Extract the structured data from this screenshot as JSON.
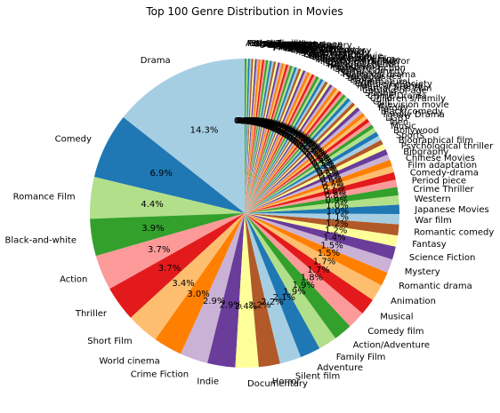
{
  "chart_data": {
    "type": "pie",
    "title": "Top 100 Genre Distribution in Movies",
    "start_angle_deg": 90,
    "direction": "counterclockwise",
    "autopct": "%1.1f%%",
    "palette": [
      "#a6cee3",
      "#1f78b4",
      "#b2df8a",
      "#33a02c",
      "#fb9a99",
      "#e31a1c",
      "#fdbf6f",
      "#ff7f00",
      "#cab2d6",
      "#6a3d9a",
      "#ffff99",
      "#b15928"
    ],
    "slices": [
      {
        "label": "Drama",
        "value": 14.8
      },
      {
        "label": "Comedy",
        "value": 7.1
      },
      {
        "label": "Romance Film",
        "value": 4.5
      },
      {
        "label": "Black-and-white",
        "value": 4.0
      },
      {
        "label": "Action",
        "value": 3.8
      },
      {
        "label": "Thriller",
        "value": 3.8
      },
      {
        "label": "Short Film",
        "value": 3.5
      },
      {
        "label": "World cinema",
        "value": 3.1
      },
      {
        "label": "Crime Fiction",
        "value": 3.0
      },
      {
        "label": "Indie",
        "value": 3.0
      },
      {
        "label": "Documentary",
        "value": 2.5
      },
      {
        "label": "Horror",
        "value": 2.3
      },
      {
        "label": "Silent film",
        "value": 2.3
      },
      {
        "label": "Adventure",
        "value": 2.2
      },
      {
        "label": "Family Film",
        "value": 2.0
      },
      {
        "label": "Action/Adventure",
        "value": 2.0
      },
      {
        "label": "Comedy film",
        "value": 1.9
      },
      {
        "label": "Musical",
        "value": 1.8
      },
      {
        "label": "Animation",
        "value": 1.8
      },
      {
        "label": "Romantic drama",
        "value": 1.5
      },
      {
        "label": "Mystery",
        "value": 1.5
      },
      {
        "label": "Science Fiction",
        "value": 1.4
      },
      {
        "label": "Fantasy",
        "value": 1.2
      },
      {
        "label": "Romantic comedy",
        "value": 1.2
      },
      {
        "label": "War film",
        "value": 1.1
      },
      {
        "label": "Japanese Movies",
        "value": 1.0
      },
      {
        "label": "Western",
        "value": 1.0
      },
      {
        "label": "Crime Thriller",
        "value": 0.9
      },
      {
        "label": "Period piece",
        "value": 0.8
      },
      {
        "label": "Comedy-drama",
        "value": 0.8
      },
      {
        "label": "Film adaptation",
        "value": 0.7
      },
      {
        "label": "Chinese Movies",
        "value": 0.7
      },
      {
        "label": "Biography",
        "value": 0.6
      },
      {
        "label": "Psychological thriller",
        "value": 0.6
      },
      {
        "label": "Biographical film",
        "value": 0.6
      },
      {
        "label": "Sports",
        "value": 0.5
      },
      {
        "label": "Bollywood",
        "value": 0.5
      },
      {
        "label": "Music",
        "value": 0.5
      },
      {
        "label": "Teen",
        "value": 0.5
      },
      {
        "label": "LGBT",
        "value": 0.4
      },
      {
        "label": "Family Drama",
        "value": 0.4
      },
      {
        "label": "Black comedy",
        "value": 0.4
      },
      {
        "label": "Parody",
        "value": 0.4
      },
      {
        "label": "Television movie",
        "value": 0.4
      },
      {
        "label": "Cult",
        "value": 0.4
      },
      {
        "label": "Children's/Family",
        "value": 0.4
      },
      {
        "label": "Crime Drama",
        "value": 0.35
      },
      {
        "label": "Slasher",
        "value": 0.35
      },
      {
        "label": "Coming of age",
        "value": 0.35
      },
      {
        "label": "Martial Arts Film",
        "value": 0.35
      },
      {
        "label": "Political drama",
        "value": 0.3
      },
      {
        "label": "Culture & Society",
        "value": 0.3
      },
      {
        "label": "Supernatural",
        "value": 0.3
      },
      {
        "label": "Erotica",
        "value": 0.3
      },
      {
        "label": "Disaster",
        "value": 0.3
      },
      {
        "label": "Social issues",
        "value": 0.3
      },
      {
        "label": "Historical drama",
        "value": 0.3
      },
      {
        "label": "Suspense",
        "value": 0.3
      },
      {
        "label": "Horror Comedy",
        "value": 0.28
      },
      {
        "label": "Satire",
        "value": 0.28
      },
      {
        "label": "Detective fiction",
        "value": 0.28
      },
      {
        "label": "Melodrama",
        "value": 0.28
      },
      {
        "label": "Historical fiction",
        "value": 0.27
      },
      {
        "label": "Spy",
        "value": 0.27
      },
      {
        "label": "Romantic thriller",
        "value": 0.27
      },
      {
        "label": "Psychological horror",
        "value": 0.26
      },
      {
        "label": "Fantasy Adventure",
        "value": 0.26
      },
      {
        "label": "Documentary film",
        "value": 0.26
      },
      {
        "label": "Natural horror",
        "value": 0.25
      },
      {
        "label": "Gangster Film",
        "value": 0.25
      },
      {
        "label": "Christmas movie",
        "value": 0.25
      },
      {
        "label": "Sci-Fi Horror",
        "value": 0.25
      },
      {
        "label": "Epic",
        "value": 0.24
      },
      {
        "label": "Superhero",
        "value": 0.24
      },
      {
        "label": "Musical comedy",
        "value": 0.24
      },
      {
        "label": "Anime",
        "value": 0.24
      },
      {
        "label": "Romantic fantasy",
        "value": 0.23
      },
      {
        "label": "Fantasy Comedy",
        "value": 0.23
      },
      {
        "label": "Crime Comedy",
        "value": 0.23
      },
      {
        "label": "Drama film",
        "value": 0.23
      },
      {
        "label": "Zombie Film",
        "value": 0.22
      },
      {
        "label": "Sex comedy",
        "value": 0.22
      },
      {
        "label": "Noir",
        "value": 0.22
      },
      {
        "label": "Film noir",
        "value": 0.22
      },
      {
        "label": "Monster movie",
        "value": 0.21
      },
      {
        "label": "Jungle",
        "value": 0.21
      },
      {
        "label": "Cyberpunk",
        "value": 0.21
      },
      {
        "label": "Sword and sorcery",
        "value": 0.21
      },
      {
        "label": "Space western",
        "value": 0.2
      },
      {
        "label": "Time travel",
        "value": 0.2
      },
      {
        "label": "Animated cartoon",
        "value": 0.2
      },
      {
        "label": "Stop motion",
        "value": 0.2
      },
      {
        "label": "Heist",
        "value": 0.19
      },
      {
        "label": "Road movie",
        "value": 0.19
      },
      {
        "label": "Mockumentary",
        "value": 0.19
      },
      {
        "label": "Costume drama",
        "value": 0.19
      },
      {
        "label": "Prison",
        "value": 0.18
      },
      {
        "label": "Legal drama",
        "value": 0.18
      },
      {
        "label": "Pre-Code",
        "value": 0.18
      },
      {
        "label": "Action Thrillers",
        "value": 0.18
      }
    ]
  }
}
